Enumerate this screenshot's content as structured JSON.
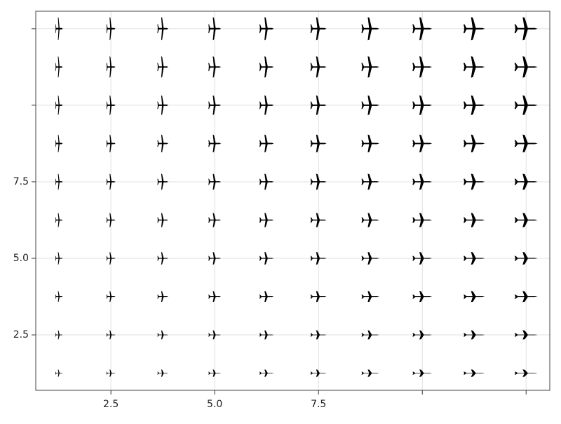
{
  "chart_data": {
    "type": "scatter",
    "color": "#000000",
    "grid": true,
    "x": [
      1.25,
      2.5,
      3.75,
      5,
      6.25,
      7.5,
      8.75,
      10,
      11.25,
      12.5,
      1.25,
      2.5,
      3.75,
      5,
      6.25,
      7.5,
      8.75,
      10,
      11.25,
      12.5,
      1.25,
      2.5,
      3.75,
      5,
      6.25,
      7.5,
      8.75,
      10,
      11.25,
      12.5,
      1.25,
      2.5,
      3.75,
      5,
      6.25,
      7.5,
      8.75,
      10,
      11.25,
      12.5,
      1.25,
      2.5,
      3.75,
      5,
      6.25,
      7.5,
      8.75,
      10,
      11.25,
      12.5,
      1.25,
      2.5,
      3.75,
      5,
      6.25,
      7.5,
      8.75,
      10,
      11.25,
      12.5,
      1.25,
      2.5,
      3.75,
      5,
      6.25,
      7.5,
      8.75,
      10,
      11.25,
      12.5,
      1.25,
      2.5,
      3.75,
      5,
      6.25,
      7.5,
      8.75,
      10,
      11.25,
      12.5,
      1.25,
      2.5,
      3.75,
      5,
      6.25,
      7.5,
      8.75,
      10,
      11.25,
      12.5,
      1.25,
      2.5,
      3.75,
      5,
      6.25,
      7.5,
      8.75,
      10,
      11.25,
      12.5
    ],
    "values": [
      1.25,
      1.25,
      1.25,
      1.25,
      1.25,
      1.25,
      1.25,
      1.25,
      1.25,
      1.25,
      2.5,
      2.5,
      2.5,
      2.5,
      2.5,
      2.5,
      2.5,
      2.5,
      2.5,
      2.5,
      3.75,
      3.75,
      3.75,
      3.75,
      3.75,
      3.75,
      3.75,
      3.75,
      3.75,
      3.75,
      5,
      5,
      5,
      5,
      5,
      5,
      5,
      5,
      5,
      5,
      6.25,
      6.25,
      6.25,
      6.25,
      6.25,
      6.25,
      6.25,
      6.25,
      6.25,
      6.25,
      7.5,
      7.5,
      7.5,
      7.5,
      7.5,
      7.5,
      7.5,
      7.5,
      7.5,
      7.5,
      8.75,
      8.75,
      8.75,
      8.75,
      8.75,
      8.75,
      8.75,
      8.75,
      8.75,
      8.75,
      10,
      10,
      10,
      10,
      10,
      10,
      10,
      10,
      10,
      10,
      11.25,
      11.25,
      11.25,
      11.25,
      11.25,
      11.25,
      11.25,
      11.25,
      11.25,
      11.25,
      12.5,
      12.5,
      12.5,
      12.5,
      12.5,
      12.5,
      12.5,
      12.5,
      12.5,
      12.5
    ],
    "xlim": [
      0.69,
      13.07
    ],
    "ylim": [
      0.69,
      13.07
    ],
    "xticks": [
      2.5,
      {
        "value": 5,
        "label": "5.0"
      },
      7.5,
      {
        "value": 10,
        "label": null
      },
      {
        "value": 12.5,
        "label": null
      }
    ],
    "yticks": [
      2.5,
      {
        "value": 5,
        "label": "5.0"
      },
      7.5,
      {
        "value": 10,
        "label": null
      },
      {
        "value": 12.5,
        "label": null
      }
    ]
  }
}
